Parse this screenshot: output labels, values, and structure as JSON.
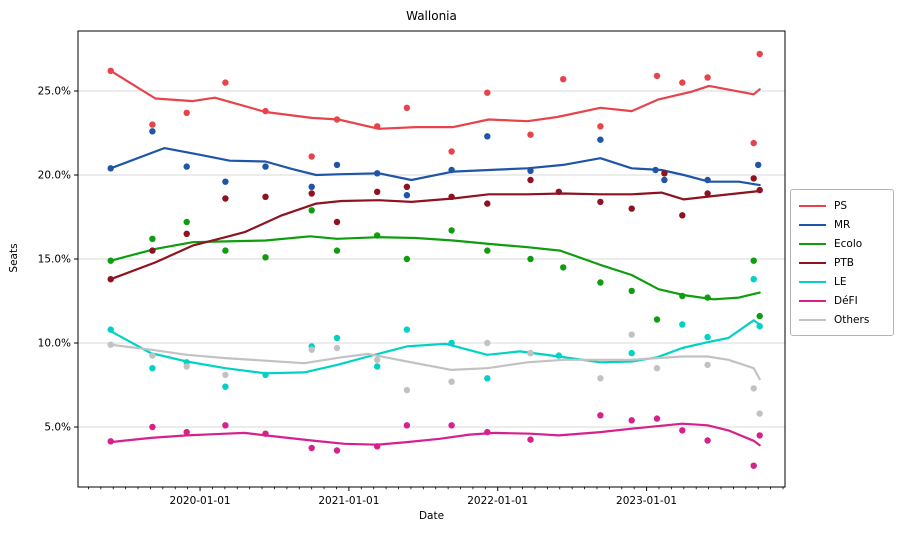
{
  "chart_data": {
    "type": "scatter",
    "title": "Wallonia",
    "xlabel": "Date",
    "ylabel": "Seats",
    "x_range": [
      2019.18,
      2023.93
    ],
    "y_range": [
      1.43,
      28.57
    ],
    "grid": "horizontal",
    "legend_position": "right-outside",
    "x_ticks": [
      {
        "value": 2020.0,
        "label": "2020-01-01"
      },
      {
        "value": 2021.0,
        "label": "2021-01-01"
      },
      {
        "value": 2022.0,
        "label": "2022-01-01"
      },
      {
        "value": 2023.0,
        "label": "2023-01-01"
      }
    ],
    "y_ticks": [
      {
        "value": 5.0,
        "label": "5.0%"
      },
      {
        "value": 10.0,
        "label": "10.0%"
      },
      {
        "value": 15.0,
        "label": "15.0%"
      },
      {
        "value": 20.0,
        "label": "20.0%"
      },
      {
        "value": 25.0,
        "label": "25.0%"
      }
    ],
    "x_minor_ticks_months": true,
    "series": [
      {
        "name": "PS",
        "color": "#e8434a",
        "scatter": [
          [
            2019.4,
            26.2
          ],
          [
            2019.68,
            23.0
          ],
          [
            2019.91,
            23.7
          ],
          [
            2020.17,
            25.5
          ],
          [
            2020.44,
            23.8
          ],
          [
            2020.75,
            21.1
          ],
          [
            2020.92,
            23.3
          ],
          [
            2021.19,
            22.9
          ],
          [
            2021.39,
            24.0
          ],
          [
            2021.69,
            21.4
          ],
          [
            2021.93,
            24.9
          ],
          [
            2022.22,
            22.4
          ],
          [
            2022.44,
            25.7
          ],
          [
            2022.69,
            22.9
          ],
          [
            2023.07,
            25.9
          ],
          [
            2023.24,
            25.5
          ],
          [
            2023.41,
            25.8
          ],
          [
            2023.72,
            21.9
          ],
          [
            2023.76,
            27.2
          ]
        ],
        "trend": [
          [
            2019.4,
            26.2
          ],
          [
            2019.7,
            24.55
          ],
          [
            2019.95,
            24.4
          ],
          [
            2020.1,
            24.6
          ],
          [
            2020.44,
            23.75
          ],
          [
            2020.75,
            23.4
          ],
          [
            2020.93,
            23.3
          ],
          [
            2021.2,
            22.75
          ],
          [
            2021.45,
            22.85
          ],
          [
            2021.7,
            22.85
          ],
          [
            2021.94,
            23.3
          ],
          [
            2022.2,
            23.2
          ],
          [
            2022.4,
            23.45
          ],
          [
            2022.69,
            24.0
          ],
          [
            2022.9,
            23.8
          ],
          [
            2023.08,
            24.5
          ],
          [
            2023.3,
            24.95
          ],
          [
            2023.42,
            25.3
          ],
          [
            2023.72,
            24.8
          ],
          [
            2023.76,
            25.1
          ]
        ]
      },
      {
        "name": "MR",
        "color": "#1f55a8",
        "scatter": [
          [
            2019.4,
            20.4
          ],
          [
            2019.68,
            22.6
          ],
          [
            2019.91,
            20.5
          ],
          [
            2020.17,
            19.6
          ],
          [
            2020.44,
            20.5
          ],
          [
            2020.75,
            19.3
          ],
          [
            2020.92,
            20.6
          ],
          [
            2021.19,
            20.1
          ],
          [
            2021.39,
            18.8
          ],
          [
            2021.69,
            20.3
          ],
          [
            2021.93,
            22.3
          ],
          [
            2022.22,
            20.25
          ],
          [
            2022.69,
            22.1
          ],
          [
            2023.06,
            20.3
          ],
          [
            2023.12,
            19.7
          ],
          [
            2023.41,
            19.7
          ],
          [
            2023.75,
            20.6
          ]
        ],
        "trend": [
          [
            2019.4,
            20.4
          ],
          [
            2019.76,
            21.6
          ],
          [
            2020.0,
            21.2
          ],
          [
            2020.2,
            20.85
          ],
          [
            2020.44,
            20.8
          ],
          [
            2020.62,
            20.35
          ],
          [
            2020.78,
            20.0
          ],
          [
            2020.95,
            20.05
          ],
          [
            2021.2,
            20.1
          ],
          [
            2021.42,
            19.7
          ],
          [
            2021.7,
            20.2
          ],
          [
            2021.94,
            20.3
          ],
          [
            2022.2,
            20.4
          ],
          [
            2022.44,
            20.6
          ],
          [
            2022.69,
            21.0
          ],
          [
            2022.9,
            20.4
          ],
          [
            2023.1,
            20.3
          ],
          [
            2023.25,
            20.0
          ],
          [
            2023.42,
            19.6
          ],
          [
            2023.62,
            19.6
          ],
          [
            2023.76,
            19.4
          ]
        ]
      },
      {
        "name": "Ecolo",
        "color": "#0f9d0f",
        "scatter": [
          [
            2019.4,
            14.9
          ],
          [
            2019.68,
            16.2
          ],
          [
            2019.91,
            17.2
          ],
          [
            2020.17,
            15.5
          ],
          [
            2020.44,
            15.1
          ],
          [
            2020.75,
            17.9
          ],
          [
            2020.92,
            15.5
          ],
          [
            2021.19,
            16.4
          ],
          [
            2021.39,
            15.0
          ],
          [
            2021.69,
            16.7
          ],
          [
            2021.93,
            15.5
          ],
          [
            2022.22,
            15.0
          ],
          [
            2022.44,
            14.5
          ],
          [
            2022.69,
            13.6
          ],
          [
            2022.9,
            13.1
          ],
          [
            2023.07,
            11.4
          ],
          [
            2023.24,
            12.8
          ],
          [
            2023.41,
            12.7
          ],
          [
            2023.72,
            14.9
          ],
          [
            2023.76,
            11.6
          ]
        ],
        "trend": [
          [
            2019.4,
            14.9
          ],
          [
            2019.7,
            15.6
          ],
          [
            2019.95,
            16.0
          ],
          [
            2020.17,
            16.05
          ],
          [
            2020.44,
            16.1
          ],
          [
            2020.74,
            16.35
          ],
          [
            2020.92,
            16.2
          ],
          [
            2021.2,
            16.3
          ],
          [
            2021.45,
            16.25
          ],
          [
            2021.7,
            16.1
          ],
          [
            2021.94,
            15.9
          ],
          [
            2022.2,
            15.7
          ],
          [
            2022.42,
            15.5
          ],
          [
            2022.69,
            14.65
          ],
          [
            2022.9,
            14.05
          ],
          [
            2023.08,
            13.2
          ],
          [
            2023.25,
            12.85
          ],
          [
            2023.45,
            12.6
          ],
          [
            2023.62,
            12.7
          ],
          [
            2023.76,
            13.0
          ]
        ]
      },
      {
        "name": "PTB",
        "color": "#8e1220",
        "scatter": [
          [
            2019.4,
            13.8
          ],
          [
            2019.68,
            15.5
          ],
          [
            2019.91,
            16.5
          ],
          [
            2020.17,
            18.6
          ],
          [
            2020.44,
            18.7
          ],
          [
            2020.75,
            18.9
          ],
          [
            2020.92,
            17.2
          ],
          [
            2021.19,
            19.0
          ],
          [
            2021.39,
            19.3
          ],
          [
            2021.69,
            18.7
          ],
          [
            2021.93,
            18.3
          ],
          [
            2022.22,
            19.7
          ],
          [
            2022.41,
            19.0
          ],
          [
            2022.69,
            18.4
          ],
          [
            2022.9,
            18.0
          ],
          [
            2023.12,
            20.1
          ],
          [
            2023.24,
            17.6
          ],
          [
            2023.41,
            18.9
          ],
          [
            2023.72,
            19.8
          ],
          [
            2023.76,
            19.1
          ]
        ],
        "trend": [
          [
            2019.4,
            13.8
          ],
          [
            2019.7,
            14.8
          ],
          [
            2019.95,
            15.8
          ],
          [
            2020.17,
            16.3
          ],
          [
            2020.3,
            16.6
          ],
          [
            2020.55,
            17.6
          ],
          [
            2020.78,
            18.3
          ],
          [
            2020.95,
            18.45
          ],
          [
            2021.2,
            18.5
          ],
          [
            2021.42,
            18.4
          ],
          [
            2021.7,
            18.6
          ],
          [
            2021.94,
            18.85
          ],
          [
            2022.2,
            18.85
          ],
          [
            2022.44,
            18.9
          ],
          [
            2022.69,
            18.85
          ],
          [
            2022.9,
            18.85
          ],
          [
            2023.1,
            18.95
          ],
          [
            2023.25,
            18.55
          ],
          [
            2023.45,
            18.75
          ],
          [
            2023.76,
            19.05
          ]
        ]
      },
      {
        "name": "LE",
        "color": "#00d2c5",
        "scatter": [
          [
            2019.4,
            10.8
          ],
          [
            2019.68,
            8.5
          ],
          [
            2019.91,
            8.85
          ],
          [
            2020.17,
            7.4
          ],
          [
            2020.44,
            8.1
          ],
          [
            2020.75,
            9.8
          ],
          [
            2020.92,
            10.3
          ],
          [
            2021.19,
            8.6
          ],
          [
            2021.39,
            10.8
          ],
          [
            2021.69,
            10.0
          ],
          [
            2021.93,
            7.9
          ],
          [
            2022.22,
            9.4
          ],
          [
            2022.41,
            9.25
          ],
          [
            2022.9,
            9.4
          ],
          [
            2023.24,
            11.1
          ],
          [
            2023.41,
            10.35
          ],
          [
            2023.72,
            13.8
          ],
          [
            2023.76,
            11.0
          ]
        ],
        "trend": [
          [
            2019.4,
            10.7
          ],
          [
            2019.67,
            9.4
          ],
          [
            2019.91,
            8.9
          ],
          [
            2020.17,
            8.5
          ],
          [
            2020.44,
            8.2
          ],
          [
            2020.7,
            8.25
          ],
          [
            2020.92,
            8.7
          ],
          [
            2021.13,
            9.2
          ],
          [
            2021.39,
            9.8
          ],
          [
            2021.65,
            9.95
          ],
          [
            2021.93,
            9.3
          ],
          [
            2022.15,
            9.5
          ],
          [
            2022.41,
            9.2
          ],
          [
            2022.69,
            8.85
          ],
          [
            2022.9,
            8.9
          ],
          [
            2023.07,
            9.15
          ],
          [
            2023.24,
            9.7
          ],
          [
            2023.41,
            10.05
          ],
          [
            2023.55,
            10.3
          ],
          [
            2023.72,
            11.35
          ],
          [
            2023.76,
            11.1
          ]
        ]
      },
      {
        "name": "DéFI",
        "color": "#d6208c",
        "scatter": [
          [
            2019.4,
            4.15
          ],
          [
            2019.68,
            5.0
          ],
          [
            2019.91,
            4.7
          ],
          [
            2020.17,
            5.1
          ],
          [
            2020.44,
            4.6
          ],
          [
            2020.75,
            3.75
          ],
          [
            2020.92,
            3.6
          ],
          [
            2021.19,
            3.85
          ],
          [
            2021.39,
            5.1
          ],
          [
            2021.69,
            5.1
          ],
          [
            2021.93,
            4.7
          ],
          [
            2022.22,
            4.25
          ],
          [
            2022.69,
            5.7
          ],
          [
            2022.9,
            5.4
          ],
          [
            2023.07,
            5.5
          ],
          [
            2023.24,
            4.8
          ],
          [
            2023.41,
            4.2
          ],
          [
            2023.72,
            2.7
          ],
          [
            2023.76,
            4.5
          ]
        ],
        "trend": [
          [
            2019.4,
            4.1
          ],
          [
            2019.67,
            4.35
          ],
          [
            2019.91,
            4.5
          ],
          [
            2020.17,
            4.6
          ],
          [
            2020.3,
            4.65
          ],
          [
            2020.44,
            4.5
          ],
          [
            2020.75,
            4.2
          ],
          [
            2020.97,
            4.0
          ],
          [
            2021.19,
            3.95
          ],
          [
            2021.39,
            4.1
          ],
          [
            2021.61,
            4.3
          ],
          [
            2021.81,
            4.55
          ],
          [
            2021.98,
            4.65
          ],
          [
            2022.22,
            4.6
          ],
          [
            2022.41,
            4.5
          ],
          [
            2022.69,
            4.7
          ],
          [
            2022.9,
            4.9
          ],
          [
            2023.07,
            5.05
          ],
          [
            2023.24,
            5.2
          ],
          [
            2023.41,
            5.1
          ],
          [
            2023.55,
            4.8
          ],
          [
            2023.72,
            4.18
          ],
          [
            2023.76,
            3.92
          ]
        ]
      },
      {
        "name": "Others",
        "color": "#c2c2c2",
        "scatter": [
          [
            2019.4,
            9.9
          ],
          [
            2019.68,
            9.25
          ],
          [
            2019.91,
            8.6
          ],
          [
            2020.17,
            8.1
          ],
          [
            2020.75,
            9.6
          ],
          [
            2020.92,
            9.7
          ],
          [
            2021.19,
            9.0
          ],
          [
            2021.39,
            7.2
          ],
          [
            2021.69,
            7.7
          ],
          [
            2021.93,
            10.0
          ],
          [
            2022.22,
            9.4
          ],
          [
            2022.69,
            7.9
          ],
          [
            2022.9,
            10.5
          ],
          [
            2023.07,
            8.5
          ],
          [
            2023.41,
            8.7
          ],
          [
            2023.72,
            7.3
          ],
          [
            2023.76,
            5.8
          ]
        ],
        "trend": [
          [
            2019.4,
            9.9
          ],
          [
            2019.67,
            9.6
          ],
          [
            2019.91,
            9.3
          ],
          [
            2020.17,
            9.1
          ],
          [
            2020.44,
            8.95
          ],
          [
            2020.7,
            8.8
          ],
          [
            2020.95,
            9.15
          ],
          [
            2021.13,
            9.35
          ],
          [
            2021.39,
            8.9
          ],
          [
            2021.69,
            8.4
          ],
          [
            2021.93,
            8.5
          ],
          [
            2022.2,
            8.85
          ],
          [
            2022.44,
            9.0
          ],
          [
            2022.69,
            9.0
          ],
          [
            2022.9,
            9.0
          ],
          [
            2023.07,
            9.1
          ],
          [
            2023.24,
            9.2
          ],
          [
            2023.41,
            9.2
          ],
          [
            2023.55,
            9.0
          ],
          [
            2023.72,
            8.5
          ],
          [
            2023.76,
            7.85
          ]
        ]
      }
    ],
    "style": {
      "grid_color": "#d9d9d9",
      "spine_color": "#000000",
      "tick_label_color": "#000000",
      "dot_radius": 3.2,
      "line_width": 2.2
    }
  }
}
